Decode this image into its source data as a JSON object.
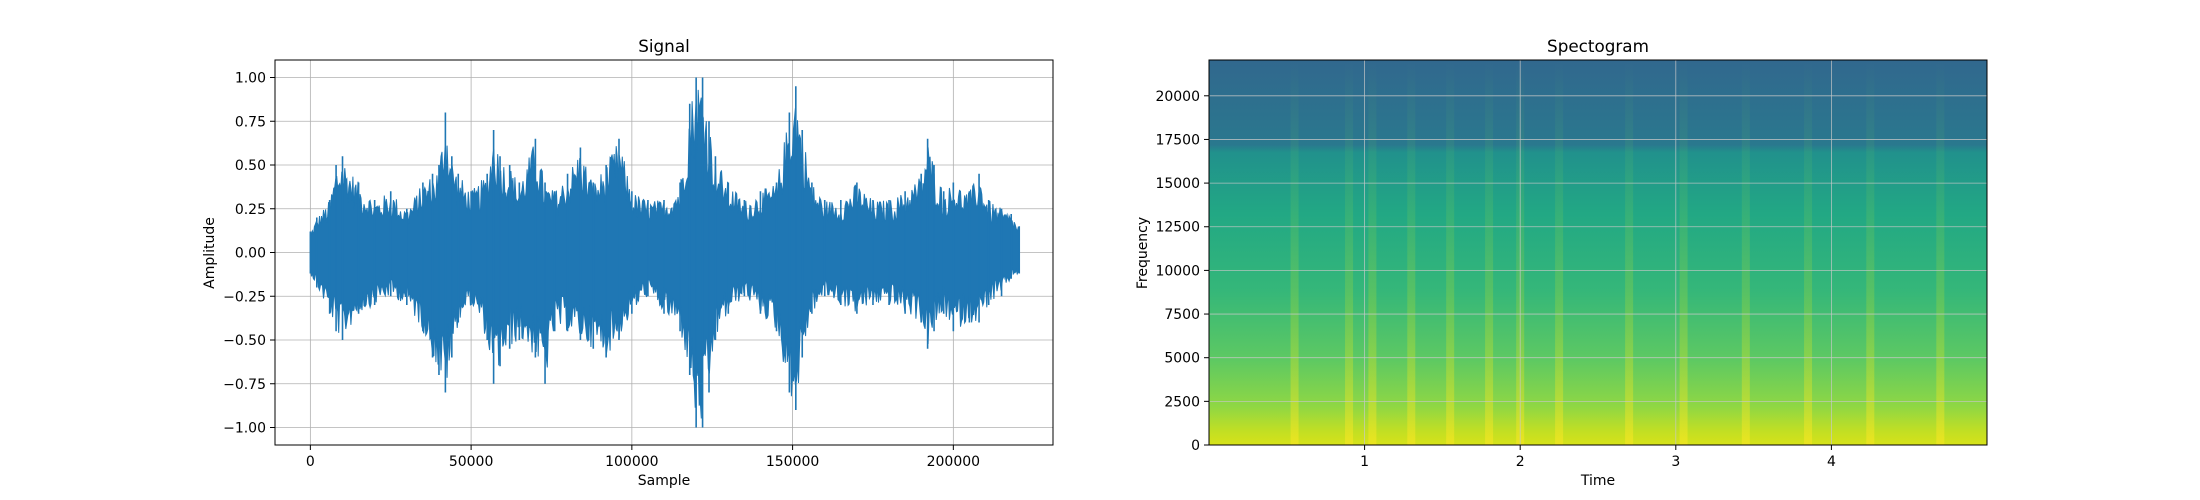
{
  "chart_data": [
    {
      "type": "line",
      "title": "Signal",
      "xlabel": "Sample",
      "ylabel": "Amplitude",
      "xlim": [
        -11000,
        231000
      ],
      "ylim": [
        -1.1,
        1.1
      ],
      "grid": true,
      "x_ticks": [
        0,
        50000,
        100000,
        150000,
        200000
      ],
      "x_tick_labels": [
        "0",
        "50000",
        "100000",
        "150000",
        "200000"
      ],
      "y_ticks": [
        1.0,
        0.75,
        0.5,
        0.25,
        0.0,
        -0.25,
        -0.5,
        -0.75,
        -1.0
      ],
      "y_tick_labels": [
        "1.00",
        "0.75",
        "0.50",
        "0.25",
        "0.00",
        "−0.25",
        "−0.50",
        "−0.75",
        "−1.00"
      ],
      "series_color": "#1f77b4",
      "envelope": {
        "x": [
          0,
          2000,
          6000,
          8000,
          10000,
          15000,
          20000,
          25000,
          30000,
          35000,
          38000,
          40000,
          42000,
          44000,
          46000,
          50000,
          55000,
          57000,
          59000,
          62000,
          65000,
          70000,
          73000,
          76000,
          80000,
          84000,
          88000,
          92000,
          96000,
          100000,
          105000,
          110000,
          115000,
          118000,
          120000,
          122000,
          124000,
          126000,
          130000,
          135000,
          140000,
          145000,
          149000,
          151000,
          153000,
          156000,
          160000,
          165000,
          170000,
          175000,
          180000,
          185000,
          190000,
          192000,
          194000,
          197000,
          200000,
          205000,
          208000,
          211000,
          215000,
          218000,
          220500
        ],
        "upper": [
          0.12,
          0.2,
          0.3,
          0.5,
          0.55,
          0.4,
          0.3,
          0.35,
          0.25,
          0.4,
          0.45,
          0.5,
          0.8,
          0.55,
          0.45,
          0.35,
          0.45,
          0.7,
          0.55,
          0.5,
          0.4,
          0.65,
          0.4,
          0.35,
          0.45,
          0.6,
          0.4,
          0.5,
          0.65,
          0.35,
          0.3,
          0.3,
          0.4,
          0.85,
          1.0,
          1.0,
          0.75,
          0.55,
          0.4,
          0.3,
          0.35,
          0.4,
          0.8,
          0.95,
          0.7,
          0.4,
          0.3,
          0.3,
          0.4,
          0.3,
          0.3,
          0.35,
          0.45,
          0.65,
          0.5,
          0.35,
          0.4,
          0.35,
          0.45,
          0.3,
          0.25,
          0.22,
          0.15
        ],
        "lower": [
          -0.12,
          -0.2,
          -0.35,
          -0.45,
          -0.5,
          -0.35,
          -0.3,
          -0.25,
          -0.3,
          -0.45,
          -0.6,
          -0.7,
          -0.8,
          -0.6,
          -0.4,
          -0.3,
          -0.5,
          -0.75,
          -0.65,
          -0.55,
          -0.5,
          -0.6,
          -0.75,
          -0.45,
          -0.45,
          -0.5,
          -0.55,
          -0.6,
          -0.5,
          -0.35,
          -0.25,
          -0.35,
          -0.45,
          -0.7,
          -1.0,
          -1.0,
          -0.8,
          -0.5,
          -0.35,
          -0.25,
          -0.35,
          -0.45,
          -0.8,
          -0.9,
          -0.6,
          -0.35,
          -0.25,
          -0.3,
          -0.35,
          -0.3,
          -0.3,
          -0.35,
          -0.4,
          -0.55,
          -0.45,
          -0.35,
          -0.45,
          -0.4,
          -0.4,
          -0.3,
          -0.25,
          -0.15,
          -0.12
        ]
      }
    },
    {
      "type": "heatmap",
      "title": "Spectogram",
      "xlabel": "Time",
      "ylabel": "Frequency",
      "xlim": [
        0.0,
        5.0
      ],
      "ylim": [
        0,
        22050
      ],
      "grid": true,
      "colormap": "viridis",
      "x_ticks": [
        1,
        2,
        3,
        4
      ],
      "x_tick_labels": [
        "1",
        "2",
        "3",
        "4"
      ],
      "y_ticks": [
        0,
        2500,
        5000,
        7500,
        10000,
        12500,
        15000,
        17500,
        20000
      ],
      "y_tick_labels": [
        "0",
        "2500",
        "5000",
        "7500",
        "10000",
        "12500",
        "15000",
        "17500",
        "20000"
      ],
      "transient_times": [
        0.55,
        0.9,
        1.05,
        1.3,
        1.55,
        1.8,
        2.0,
        2.25,
        2.7,
        3.05,
        3.45,
        3.85,
        4.25,
        4.7
      ]
    }
  ]
}
